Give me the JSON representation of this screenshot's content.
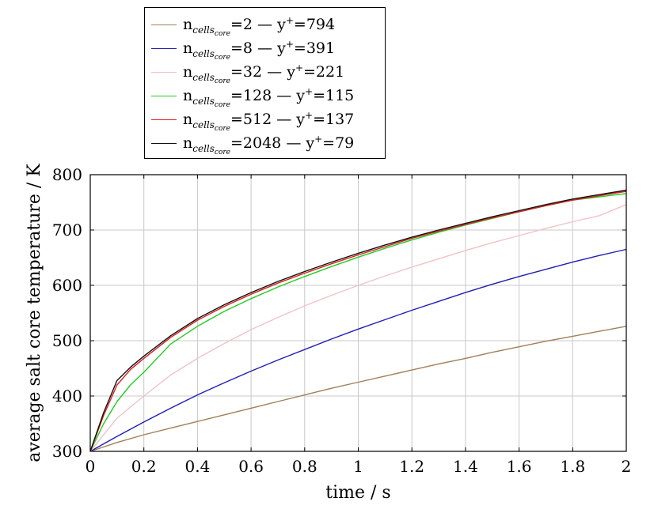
{
  "chart_data": {
    "type": "line",
    "xlabel": "time / s",
    "ylabel": "average salt core temperature / K",
    "xlim": [
      0,
      2
    ],
    "ylim": [
      300,
      800
    ],
    "xticks": [
      "0",
      "0.2",
      "0.4",
      "0.6",
      "0.8",
      "1",
      "1.2",
      "1.4",
      "1.6",
      "1.8",
      "2"
    ],
    "yticks": [
      "300",
      "400",
      "500",
      "600",
      "700",
      "800"
    ],
    "grid": true,
    "legend_position": "above-top-left",
    "series": [
      {
        "name": "n_cells_core=2 — y+=794",
        "legend_n_symbol": "n",
        "legend_n_sub": "cells",
        "legend_n_subsub": "core",
        "legend_n_value": "=2",
        "legend_sep": "—",
        "legend_y_symbol": "y",
        "legend_y_sup": "+",
        "legend_y_value": "=794",
        "color": "#a08058",
        "x": [
          0,
          0.1,
          0.2,
          0.3,
          0.4,
          0.5,
          0.6,
          0.7,
          0.8,
          0.9,
          1.0,
          1.1,
          1.2,
          1.3,
          1.4,
          1.5,
          1.6,
          1.7,
          1.8,
          1.9,
          2.0
        ],
        "y": [
          300,
          316,
          330,
          342,
          354,
          366,
          378,
          390,
          402,
          414,
          425,
          436,
          447,
          458,
          468,
          479,
          489,
          499,
          508,
          517,
          526
        ]
      },
      {
        "name": "n_cells_core=8 — y+=391",
        "legend_n_symbol": "n",
        "legend_n_sub": "cells",
        "legend_n_subsub": "core",
        "legend_n_value": "=8",
        "legend_sep": "—",
        "legend_y_symbol": "y",
        "legend_y_sup": "+",
        "legend_y_value": "=391",
        "color": "#1f1fb4",
        "x": [
          0,
          0.1,
          0.2,
          0.3,
          0.4,
          0.5,
          0.6,
          0.7,
          0.8,
          0.9,
          1.0,
          1.1,
          1.2,
          1.3,
          1.4,
          1.5,
          1.6,
          1.7,
          1.8,
          1.9,
          2.0
        ],
        "y": [
          300,
          327,
          353,
          378,
          402,
          424,
          445,
          465,
          484,
          503,
          521,
          538,
          555,
          571,
          587,
          602,
          616,
          629,
          642,
          654,
          665
        ]
      },
      {
        "name": "n_cells_core=32 — y+=221",
        "legend_n_symbol": "n",
        "legend_n_sub": "cells",
        "legend_n_subsub": "core",
        "legend_n_value": "=32",
        "legend_sep": "—",
        "legend_y_symbol": "y",
        "legend_y_sup": "+",
        "legend_y_value": "=221",
        "color": "#f2c2c8",
        "x": [
          0,
          0.1,
          0.2,
          0.3,
          0.4,
          0.5,
          0.6,
          0.7,
          0.8,
          0.9,
          1.0,
          1.1,
          1.2,
          1.3,
          1.4,
          1.5,
          1.6,
          1.7,
          1.8,
          1.9,
          2.0
        ],
        "y": [
          300,
          360,
          400,
          438,
          468,
          495,
          520,
          542,
          563,
          582,
          600,
          617,
          633,
          648,
          663,
          677,
          690,
          703,
          715,
          726,
          746
        ]
      },
      {
        "name": "n_cells_core=128 — y+=115",
        "legend_n_symbol": "n",
        "legend_n_sub": "cells",
        "legend_n_subsub": "core",
        "legend_n_value": "=128",
        "legend_sep": "—",
        "legend_y_symbol": "y",
        "legend_y_sup": "+",
        "legend_y_value": "=115",
        "color": "#22cc22",
        "x": [
          0,
          0.05,
          0.1,
          0.15,
          0.2,
          0.3,
          0.4,
          0.5,
          0.6,
          0.7,
          0.8,
          0.9,
          1.0,
          1.1,
          1.2,
          1.3,
          1.4,
          1.5,
          1.6,
          1.7,
          1.8,
          1.9,
          2.0
        ],
        "y": [
          300,
          350,
          390,
          420,
          443,
          494,
          526,
          553,
          576,
          597,
          616,
          634,
          651,
          667,
          682,
          696,
          709,
          721,
          733,
          744,
          754,
          760,
          766
        ]
      },
      {
        "name": "n_cells_core=512 — y+=137",
        "legend_n_symbol": "n",
        "legend_n_sub": "cells",
        "legend_n_subsub": "core",
        "legend_n_value": "=512",
        "legend_sep": "—",
        "legend_y_symbol": "y",
        "legend_y_sup": "+",
        "legend_y_value": "=137",
        "color": "#dd1f1f",
        "x": [
          0,
          0.05,
          0.1,
          0.15,
          0.2,
          0.3,
          0.4,
          0.5,
          0.6,
          0.7,
          0.8,
          0.9,
          1.0,
          1.1,
          1.2,
          1.3,
          1.4,
          1.5,
          1.6,
          1.7,
          1.8,
          1.9,
          2.0
        ],
        "y": [
          300,
          365,
          420,
          448,
          468,
          506,
          537,
          562,
          584,
          604,
          622,
          639,
          655,
          670,
          685,
          698,
          710,
          722,
          733,
          744,
          754,
          762,
          770
        ]
      },
      {
        "name": "n_cells_core=2048 — y+=79",
        "legend_n_symbol": "n",
        "legend_n_sub": "cells",
        "legend_n_subsub": "core",
        "legend_n_value": "=2048",
        "legend_sep": "—",
        "legend_y_symbol": "y",
        "legend_y_sup": "+",
        "legend_y_value": "=79",
        "color": "#111111",
        "x": [
          0,
          0.05,
          0.1,
          0.15,
          0.2,
          0.3,
          0.4,
          0.5,
          0.6,
          0.7,
          0.8,
          0.9,
          1.0,
          1.1,
          1.2,
          1.3,
          1.4,
          1.5,
          1.6,
          1.7,
          1.8,
          1.9,
          2.0
        ],
        "y": [
          300,
          370,
          428,
          452,
          472,
          509,
          540,
          565,
          587,
          607,
          625,
          642,
          658,
          673,
          687,
          700,
          712,
          724,
          735,
          746,
          756,
          764,
          772
        ]
      }
    ]
  }
}
